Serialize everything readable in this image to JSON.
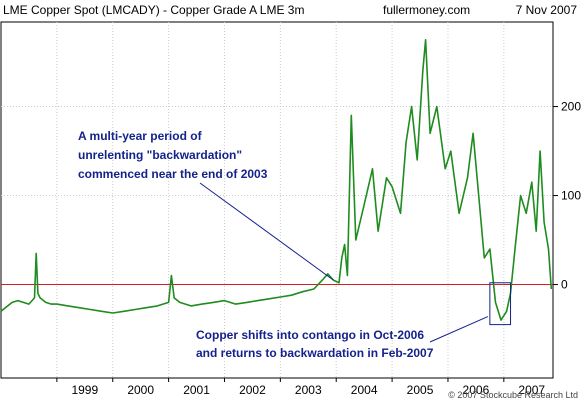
{
  "header": {
    "title": "LME Copper Spot (LMCADY) - Copper Grade A LME 3m",
    "source": "fullermoney.com",
    "date": "7 Nov 2007"
  },
  "footer": {
    "copyright": "© 2007 Stockcube Research Ltd"
  },
  "annotations": [
    {
      "id": "backwardation-note",
      "lines": [
        "A multi-year period of",
        "unrelenting \"backwardation\"",
        "commenced near the end of 2003"
      ]
    },
    {
      "id": "contango-note",
      "lines": [
        "Copper shifts into contango in Oct-2006",
        "and returns to backwardation in Feb-2007"
      ]
    }
  ],
  "colors": {
    "series": "#1f8c1f",
    "zero_line": "#d62020",
    "annotation_text": "#14228c",
    "annotation_line": "#14228c",
    "grid": "#cccccc",
    "axis": "#000000"
  },
  "chart_data": {
    "type": "line",
    "title": "LME Copper Spot (LMCADY) - Copper Grade A LME 3m",
    "xlabel": "",
    "ylabel": "",
    "xlim": [
      1998.0,
      2007.88
    ],
    "ylim": [
      -105,
      295
    ],
    "x_ticks": [
      "1999",
      "2000",
      "2001",
      "2002",
      "2003",
      "2004",
      "2005",
      "2006",
      "2007"
    ],
    "x_tick_values": [
      1999,
      2000,
      2001,
      2002,
      2003,
      2004,
      2005,
      2006,
      2007
    ],
    "y_ticks": [
      0,
      100,
      200
    ],
    "grid": true,
    "zero_line": 0,
    "series": [
      {
        "name": "",
        "x": [
          1998.0,
          1998.1,
          1998.2,
          1998.3,
          1998.4,
          1998.5,
          1998.6,
          1998.63,
          1998.66,
          1998.7,
          1998.8,
          1998.9,
          1999.0,
          1999.2,
          1999.4,
          1999.6,
          1999.8,
          2000.0,
          2000.2,
          2000.4,
          2000.6,
          2000.8,
          2001.0,
          2001.05,
          2001.1,
          2001.2,
          2001.3,
          2001.4,
          2001.6,
          2001.8,
          2002.0,
          2002.2,
          2002.4,
          2002.6,
          2002.8,
          2003.0,
          2003.2,
          2003.4,
          2003.6,
          2003.75,
          2003.85,
          2003.95,
          2004.05,
          2004.1,
          2004.15,
          2004.2,
          2004.27,
          2004.35,
          2004.5,
          2004.65,
          2004.75,
          2004.9,
          2005.0,
          2005.15,
          2005.25,
          2005.35,
          2005.45,
          2005.55,
          2005.6,
          2005.68,
          2005.8,
          2005.95,
          2006.05,
          2006.2,
          2006.35,
          2006.45,
          2006.55,
          2006.65,
          2006.75,
          2006.85,
          2006.95,
          2007.05,
          2007.12,
          2007.2,
          2007.3,
          2007.4,
          2007.5,
          2007.58,
          2007.65,
          2007.72,
          2007.8,
          2007.85
        ],
        "values": [
          -30,
          -25,
          -20,
          -18,
          -20,
          -22,
          -15,
          35,
          -10,
          -15,
          -20,
          -22,
          -22,
          -24,
          -26,
          -28,
          -30,
          -32,
          -30,
          -28,
          -26,
          -24,
          -20,
          10,
          -15,
          -20,
          -22,
          -24,
          -22,
          -20,
          -18,
          -22,
          -20,
          -18,
          -16,
          -14,
          -12,
          -8,
          -5,
          5,
          12,
          5,
          2,
          30,
          45,
          10,
          190,
          50,
          90,
          130,
          60,
          120,
          110,
          80,
          160,
          200,
          140,
          240,
          275,
          170,
          200,
          130,
          150,
          80,
          120,
          170,
          100,
          30,
          40,
          -20,
          -40,
          -30,
          -10,
          40,
          100,
          80,
          115,
          60,
          150,
          70,
          40,
          -5
        ]
      }
    ],
    "annotations": [
      {
        "text": "A multi-year period of unrelenting \"backwardation\" commenced near the end of 2003",
        "points_to": [
          2003.95,
          5
        ]
      },
      {
        "text": "Copper shifts into contango in Oct-2006 and returns to backwardation in Feb-2007",
        "box_x": [
          2006.75,
          2007.12
        ],
        "box_y": [
          -45,
          2
        ]
      }
    ]
  }
}
